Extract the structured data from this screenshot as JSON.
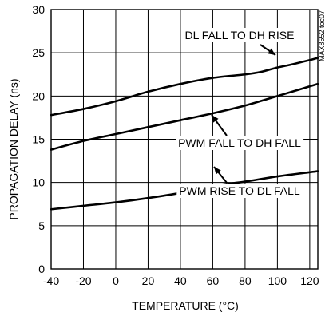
{
  "chart_data": {
    "type": "line",
    "xlabel": "TEMPERATURE (°C)",
    "ylabel": "PROPAGATION DELAY (ns)",
    "xlim": [
      -40,
      125
    ],
    "ylim": [
      0,
      30
    ],
    "x_ticks": [
      -40,
      -20,
      0,
      20,
      40,
      60,
      80,
      100,
      120
    ],
    "y_ticks": [
      0,
      5,
      10,
      15,
      20,
      25,
      30
    ],
    "grid": true,
    "watermark": "MAX8552 toc07",
    "series": [
      {
        "name": "DL FALL TO DH RISE",
        "x": [
          -40,
          -20,
          0,
          20,
          40,
          60,
          80,
          90,
          100,
          110,
          125
        ],
        "y": [
          17.8,
          18.5,
          19.4,
          20.5,
          21.4,
          22.1,
          22.5,
          22.8,
          23.3,
          23.7,
          24.4
        ]
      },
      {
        "name": "PWM FALL TO DH FALL",
        "x": [
          -40,
          -20,
          0,
          20,
          40,
          60,
          80,
          100,
          125
        ],
        "y": [
          13.8,
          14.8,
          15.6,
          16.4,
          17.2,
          18.0,
          18.9,
          20.0,
          21.4
        ]
      },
      {
        "name": "PWM RISE TO DL FALL",
        "x": [
          -40,
          -20,
          0,
          20,
          40,
          60,
          80,
          100,
          125
        ],
        "y": [
          6.9,
          7.3,
          7.7,
          8.2,
          8.8,
          9.6,
          10.1,
          10.7,
          11.3
        ]
      }
    ]
  }
}
